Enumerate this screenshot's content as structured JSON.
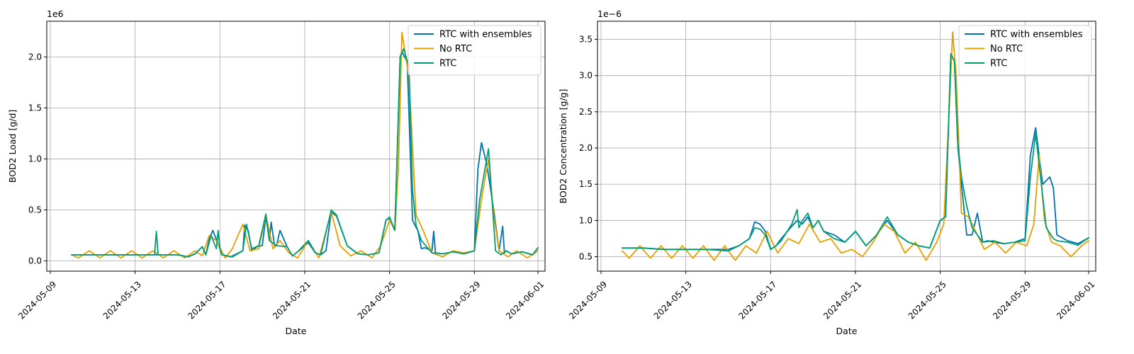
{
  "chart_data": [
    {
      "type": "line",
      "xlabel": "Date",
      "ylabel": "BOD2 Load [g/d]",
      "offset_label": "1e6",
      "scale": 1000000,
      "xlim": [
        "2024-05-08T20:00",
        "2024-06-01T08:00"
      ],
      "xticks": [
        "2024-05-09",
        "2024-05-13",
        "2024-05-17",
        "2024-05-21",
        "2024-05-25",
        "2024-05-29",
        "2024-06-01"
      ],
      "ylim": [
        -0.1,
        2.35
      ],
      "yticks": [
        0.0,
        0.5,
        1.0,
        1.5,
        2.0
      ],
      "ytick_labels": [
        "0.0",
        "0.5",
        "1.0",
        "1.5",
        "2.0"
      ],
      "grid": true,
      "legend_position": "top-right",
      "colors": {
        "RTC with ensembles": "#0072b2",
        "No RTC": "#e69f00",
        "RTC": "#009e73"
      },
      "series": [
        {
          "name": "RTC with ensembles",
          "x": [
            "2024-05-10T00:00",
            "2024-05-11T00:00",
            "2024-05-12T00:00",
            "2024-05-13T00:00",
            "2024-05-13T22:00",
            "2024-05-14T00:00",
            "2024-05-14T02:00",
            "2024-05-15T00:00",
            "2024-05-15T12:00",
            "2024-05-15T20:00",
            "2024-05-16T04:00",
            "2024-05-16T08:00",
            "2024-05-16T12:00",
            "2024-05-16T16:00",
            "2024-05-17T00:00",
            "2024-05-17T02:00",
            "2024-05-17T12:00",
            "2024-05-18T02:00",
            "2024-05-18T04:00",
            "2024-05-18T08:00",
            "2024-05-18T12:00",
            "2024-05-18T18:00",
            "2024-05-19T00:00",
            "2024-05-19T04:00",
            "2024-05-19T08:00",
            "2024-05-19T10:00",
            "2024-05-19T14:00",
            "2024-05-19T16:00",
            "2024-05-19T20:00",
            "2024-05-20T04:00",
            "2024-05-20T10:00",
            "2024-05-20T16:00",
            "2024-05-21T04:00",
            "2024-05-21T12:00",
            "2024-05-21T18:00",
            "2024-05-22T00:00",
            "2024-05-22T06:00",
            "2024-05-22T12:00",
            "2024-05-23T00:00",
            "2024-05-23T12:00",
            "2024-05-24T00:00",
            "2024-05-24T12:00",
            "2024-05-24T20:00",
            "2024-05-25T00:00",
            "2024-05-25T06:00",
            "2024-05-25T12:00",
            "2024-05-25T14:00",
            "2024-05-25T20:00",
            "2024-05-26T02:00",
            "2024-05-26T06:00",
            "2024-05-26T08:00",
            "2024-05-26T12:00",
            "2024-05-26T16:00",
            "2024-05-27T00:00",
            "2024-05-27T02:00",
            "2024-05-27T04:00",
            "2024-05-27T12:00",
            "2024-05-28T00:00",
            "2024-05-28T12:00",
            "2024-05-29T00:00",
            "2024-05-29T04:00",
            "2024-05-29T08:00",
            "2024-05-29T14:00",
            "2024-05-29T22:00",
            "2024-05-30T04:00",
            "2024-05-30T08:00",
            "2024-05-30T10:00",
            "2024-05-30T12:00",
            "2024-05-30T18:00",
            "2024-05-31T06:00",
            "2024-05-31T18:00",
            "2024-06-01T00:00"
          ],
          "values": [
            0.06,
            0.06,
            0.06,
            0.06,
            0.06,
            0.06,
            0.06,
            0.06,
            0.04,
            0.07,
            0.14,
            0.06,
            0.22,
            0.3,
            0.12,
            0.06,
            0.04,
            0.1,
            0.35,
            0.3,
            0.1,
            0.14,
            0.15,
            0.44,
            0.2,
            0.38,
            0.14,
            0.15,
            0.3,
            0.14,
            0.05,
            0.09,
            0.18,
            0.08,
            0.06,
            0.1,
            0.48,
            0.44,
            0.15,
            0.07,
            0.06,
            0.08,
            0.4,
            0.42,
            0.3,
            2.0,
            2.05,
            1.95,
            0.4,
            0.33,
            0.3,
            0.12,
            0.13,
            0.1,
            0.29,
            0.08,
            0.07,
            0.09,
            0.07,
            0.1,
            0.9,
            1.16,
            0.95,
            0.5,
            0.1,
            0.34,
            0.08,
            0.1,
            0.07,
            0.09,
            0.06,
            0.13
          ]
        },
        {
          "name": "No RTC",
          "x": [
            "2024-05-10T00:00",
            "2024-05-10T08:00",
            "2024-05-10T20:00",
            "2024-05-11T08:00",
            "2024-05-11T20:00",
            "2024-05-12T08:00",
            "2024-05-12T20:00",
            "2024-05-13T08:00",
            "2024-05-13T20:00",
            "2024-05-14T08:00",
            "2024-05-14T20:00",
            "2024-05-15T08:00",
            "2024-05-15T20:00",
            "2024-05-16T04:00",
            "2024-05-16T12:00",
            "2024-05-16T20:00",
            "2024-05-17T06:00",
            "2024-05-17T14:00",
            "2024-05-18T02:00",
            "2024-05-18T10:00",
            "2024-05-18T20:00",
            "2024-05-19T04:00",
            "2024-05-19T12:00",
            "2024-05-19T20:00",
            "2024-05-20T06:00",
            "2024-05-20T16:00",
            "2024-05-21T04:00",
            "2024-05-21T16:00",
            "2024-05-22T06:00",
            "2024-05-22T16:00",
            "2024-05-23T04:00",
            "2024-05-23T16:00",
            "2024-05-24T04:00",
            "2024-05-24T14:00",
            "2024-05-25T00:00",
            "2024-05-25T06:00",
            "2024-05-25T10:00",
            "2024-05-25T14:00",
            "2024-05-25T22:00",
            "2024-05-26T06:00",
            "2024-05-26T14:00",
            "2024-05-27T00:00",
            "2024-05-27T12:00",
            "2024-05-28T00:00",
            "2024-05-28T12:00",
            "2024-05-29T00:00",
            "2024-05-29T08:00",
            "2024-05-29T16:00",
            "2024-05-29T22:00",
            "2024-05-30T04:00",
            "2024-05-30T14:00",
            "2024-05-31T00:00",
            "2024-05-31T12:00",
            "2024-06-01T00:00"
          ],
          "values": [
            0.06,
            0.03,
            0.1,
            0.03,
            0.1,
            0.03,
            0.1,
            0.03,
            0.1,
            0.03,
            0.1,
            0.03,
            0.1,
            0.05,
            0.25,
            0.2,
            0.03,
            0.12,
            0.36,
            0.1,
            0.12,
            0.45,
            0.12,
            0.2,
            0.08,
            0.03,
            0.2,
            0.03,
            0.48,
            0.15,
            0.05,
            0.1,
            0.03,
            0.15,
            0.4,
            0.3,
            0.9,
            2.24,
            1.8,
            0.45,
            0.3,
            0.08,
            0.04,
            0.1,
            0.08,
            0.1,
            0.6,
            1.0,
            0.45,
            0.1,
            0.04,
            0.1,
            0.03,
            0.1
          ]
        },
        {
          "name": "RTC",
          "x": [
            "2024-05-10T00:00",
            "2024-05-11T00:00",
            "2024-05-12T00:00",
            "2024-05-13T00:00",
            "2024-05-13T22:00",
            "2024-05-14T00:00",
            "2024-05-14T02:00",
            "2024-05-15T00:00",
            "2024-05-15T12:00",
            "2024-05-15T20:00",
            "2024-05-16T04:00",
            "2024-05-16T08:00",
            "2024-05-16T14:00",
            "2024-05-16T20:00",
            "2024-05-16T22:00",
            "2024-05-17T00:00",
            "2024-05-17T02:00",
            "2024-05-17T14:00",
            "2024-05-18T02:00",
            "2024-05-18T06:00",
            "2024-05-18T12:00",
            "2024-05-18T20:00",
            "2024-05-19T04:00",
            "2024-05-19T08:00",
            "2024-05-19T16:00",
            "2024-05-20T04:00",
            "2024-05-20T10:00",
            "2024-05-20T16:00",
            "2024-05-21T04:00",
            "2024-05-21T12:00",
            "2024-05-21T18:00",
            "2024-05-22T06:00",
            "2024-05-22T12:00",
            "2024-05-23T00:00",
            "2024-05-23T12:00",
            "2024-05-24T00:00",
            "2024-05-24T12:00",
            "2024-05-24T20:00",
            "2024-05-25T00:00",
            "2024-05-25T06:00",
            "2024-05-25T12:00",
            "2024-05-25T16:00",
            "2024-05-25T22:00",
            "2024-05-26T02:00",
            "2024-05-26T06:00",
            "2024-05-26T12:00",
            "2024-05-27T00:00",
            "2024-05-27T12:00",
            "2024-05-28T00:00",
            "2024-05-28T12:00",
            "2024-05-29T00:00",
            "2024-05-29T06:00",
            "2024-05-29T12:00",
            "2024-05-29T16:00",
            "2024-05-29T20:00",
            "2024-05-30T00:00",
            "2024-05-30T06:00",
            "2024-05-30T12:00",
            "2024-05-30T18:00",
            "2024-05-31T06:00",
            "2024-05-31T18:00",
            "2024-06-01T00:00"
          ],
          "values": [
            0.06,
            0.06,
            0.06,
            0.06,
            0.06,
            0.29,
            0.06,
            0.06,
            0.04,
            0.07,
            0.14,
            0.06,
            0.25,
            0.12,
            0.3,
            0.12,
            0.06,
            0.04,
            0.1,
            0.36,
            0.12,
            0.15,
            0.46,
            0.2,
            0.15,
            0.14,
            0.05,
            0.09,
            0.2,
            0.08,
            0.06,
            0.5,
            0.45,
            0.15,
            0.07,
            0.06,
            0.08,
            0.4,
            0.43,
            0.3,
            2.0,
            2.08,
            1.9,
            0.7,
            0.35,
            0.2,
            0.08,
            0.07,
            0.09,
            0.07,
            0.1,
            0.6,
            0.9,
            1.1,
            0.6,
            0.1,
            0.06,
            0.1,
            0.07,
            0.09,
            0.06,
            0.13
          ]
        }
      ]
    },
    {
      "type": "line",
      "xlabel": "Date",
      "ylabel": "BOD2 Concentration [g/g]",
      "offset_label": "1e−6",
      "scale": 1e-06,
      "xlim": [
        "2024-05-08T20:00",
        "2024-06-01T08:00"
      ],
      "xticks": [
        "2024-05-09",
        "2024-05-13",
        "2024-05-17",
        "2024-05-21",
        "2024-05-25",
        "2024-05-29",
        "2024-06-01"
      ],
      "ylim": [
        0.3,
        3.75
      ],
      "yticks": [
        0.5,
        1.0,
        1.5,
        2.0,
        2.5,
        3.0,
        3.5
      ],
      "ytick_labels": [
        "0.5",
        "1.0",
        "1.5",
        "2.0",
        "2.5",
        "3.0",
        "3.5"
      ],
      "grid": true,
      "legend_position": "top-right",
      "colors": {
        "RTC with ensembles": "#0072b2",
        "No RTC": "#e69f00",
        "RTC": "#009e73"
      },
      "series": [
        {
          "name": "RTC with ensembles",
          "x": [
            "2024-05-10T00:00",
            "2024-05-11T00:00",
            "2024-05-12T00:00",
            "2024-05-13T00:00",
            "2024-05-14T00:00",
            "2024-05-15T00:00",
            "2024-05-15T12:00",
            "2024-05-16T00:00",
            "2024-05-16T06:00",
            "2024-05-16T12:00",
            "2024-05-16T18:00",
            "2024-05-17T00:00",
            "2024-05-17T06:00",
            "2024-05-17T12:00",
            "2024-05-18T00:00",
            "2024-05-18T06:00",
            "2024-05-18T12:00",
            "2024-05-18T18:00",
            "2024-05-19T00:00",
            "2024-05-19T06:00",
            "2024-05-19T12:00",
            "2024-05-20T00:00",
            "2024-05-20T12:00",
            "2024-05-21T00:00",
            "2024-05-21T12:00",
            "2024-05-22T00:00",
            "2024-05-22T12:00",
            "2024-05-23T00:00",
            "2024-05-23T12:00",
            "2024-05-24T00:00",
            "2024-05-24T12:00",
            "2024-05-25T00:00",
            "2024-05-25T06:00",
            "2024-05-25T12:00",
            "2024-05-25T16:00",
            "2024-05-25T20:00",
            "2024-05-26T00:00",
            "2024-05-26T06:00",
            "2024-05-26T12:00",
            "2024-05-26T18:00",
            "2024-05-27T00:00",
            "2024-05-27T06:00",
            "2024-05-27T12:00",
            "2024-05-28T00:00",
            "2024-05-28T12:00",
            "2024-05-29T00:00",
            "2024-05-29T06:00",
            "2024-05-29T12:00",
            "2024-05-29T20:00",
            "2024-05-30T04:00",
            "2024-05-30T08:00",
            "2024-05-30T12:00",
            "2024-05-31T00:00",
            "2024-05-31T12:00",
            "2024-06-01T00:00"
          ],
          "values": [
            0.62,
            0.62,
            0.6,
            0.6,
            0.6,
            0.6,
            0.65,
            0.75,
            0.98,
            0.95,
            0.85,
            0.6,
            0.65,
            0.75,
            0.92,
            1.0,
            0.95,
            1.05,
            0.9,
            1.0,
            0.85,
            0.8,
            0.7,
            0.85,
            0.65,
            0.8,
            1.0,
            0.8,
            0.7,
            0.65,
            0.62,
            1.0,
            1.05,
            3.3,
            3.2,
            2.0,
            1.5,
            0.8,
            0.8,
            1.1,
            0.7,
            0.72,
            0.7,
            0.68,
            0.7,
            0.75,
            1.9,
            2.28,
            1.5,
            1.6,
            1.45,
            0.8,
            0.72,
            0.68,
            0.76
          ]
        },
        {
          "name": "No RTC",
          "x": [
            "2024-05-10T00:00",
            "2024-05-10T08:00",
            "2024-05-10T20:00",
            "2024-05-11T08:00",
            "2024-05-11T20:00",
            "2024-05-12T08:00",
            "2024-05-12T20:00",
            "2024-05-13T08:00",
            "2024-05-13T20:00",
            "2024-05-14T08:00",
            "2024-05-14T20:00",
            "2024-05-15T08:00",
            "2024-05-15T20:00",
            "2024-05-16T08:00",
            "2024-05-16T20:00",
            "2024-05-17T08:00",
            "2024-05-17T20:00",
            "2024-05-18T08:00",
            "2024-05-18T20:00",
            "2024-05-19T08:00",
            "2024-05-19T20:00",
            "2024-05-20T08:00",
            "2024-05-20T20:00",
            "2024-05-21T08:00",
            "2024-05-21T20:00",
            "2024-05-22T08:00",
            "2024-05-22T20:00",
            "2024-05-23T08:00",
            "2024-05-23T20:00",
            "2024-05-24T08:00",
            "2024-05-24T20:00",
            "2024-05-25T04:00",
            "2024-05-25T10:00",
            "2024-05-25T14:00",
            "2024-05-25T18:00",
            "2024-05-26T00:00",
            "2024-05-26T08:00",
            "2024-05-26T16:00",
            "2024-05-27T02:00",
            "2024-05-27T14:00",
            "2024-05-28T02:00",
            "2024-05-28T14:00",
            "2024-05-29T02:00",
            "2024-05-29T10:00",
            "2024-05-29T16:00",
            "2024-05-29T22:00",
            "2024-05-30T06:00",
            "2024-05-30T16:00",
            "2024-05-31T04:00",
            "2024-05-31T16:00",
            "2024-06-01T00:00"
          ],
          "values": [
            0.58,
            0.48,
            0.65,
            0.48,
            0.65,
            0.48,
            0.65,
            0.48,
            0.65,
            0.45,
            0.65,
            0.45,
            0.65,
            0.55,
            0.85,
            0.55,
            0.75,
            0.68,
            0.95,
            0.7,
            0.75,
            0.55,
            0.6,
            0.5,
            0.7,
            0.95,
            0.85,
            0.55,
            0.7,
            0.45,
            0.7,
            0.95,
            2.5,
            3.6,
            3.0,
            1.1,
            1.05,
            0.85,
            0.6,
            0.7,
            0.55,
            0.7,
            0.65,
            0.95,
            1.9,
            1.0,
            0.7,
            0.65,
            0.5,
            0.65,
            0.72
          ]
        },
        {
          "name": "RTC",
          "x": [
            "2024-05-10T00:00",
            "2024-05-11T00:00",
            "2024-05-12T00:00",
            "2024-05-13T00:00",
            "2024-05-14T00:00",
            "2024-05-15T00:00",
            "2024-05-15T12:00",
            "2024-05-16T00:00",
            "2024-05-16T06:00",
            "2024-05-16T12:00",
            "2024-05-16T18:00",
            "2024-05-17T00:00",
            "2024-05-17T06:00",
            "2024-05-17T12:00",
            "2024-05-18T00:00",
            "2024-05-18T06:00",
            "2024-05-18T08:00",
            "2024-05-18T12:00",
            "2024-05-18T18:00",
            "2024-05-19T00:00",
            "2024-05-19T06:00",
            "2024-05-19T12:00",
            "2024-05-20T00:00",
            "2024-05-20T12:00",
            "2024-05-21T00:00",
            "2024-05-21T12:00",
            "2024-05-22T00:00",
            "2024-05-22T12:00",
            "2024-05-23T00:00",
            "2024-05-23T12:00",
            "2024-05-24T00:00",
            "2024-05-24T12:00",
            "2024-05-25T00:00",
            "2024-05-25T06:00",
            "2024-05-25T12:00",
            "2024-05-25T16:00",
            "2024-05-25T20:00",
            "2024-05-26T00:00",
            "2024-05-26T06:00",
            "2024-05-26T12:00",
            "2024-05-27T00:00",
            "2024-05-27T12:00",
            "2024-05-28T00:00",
            "2024-05-28T12:00",
            "2024-05-29T00:00",
            "2024-05-29T06:00",
            "2024-05-29T12:00",
            "2024-05-29T18:00",
            "2024-05-30T00:00",
            "2024-05-30T08:00",
            "2024-05-30T12:00",
            "2024-05-31T00:00",
            "2024-05-31T12:00",
            "2024-06-01T00:00"
          ],
          "values": [
            0.62,
            0.62,
            0.6,
            0.6,
            0.6,
            0.58,
            0.65,
            0.75,
            0.9,
            0.88,
            0.8,
            0.6,
            0.65,
            0.72,
            0.95,
            1.15,
            0.9,
            1.0,
            1.1,
            0.9,
            1.0,
            0.85,
            0.75,
            0.7,
            0.85,
            0.65,
            0.8,
            1.05,
            0.8,
            0.7,
            0.65,
            0.62,
            1.0,
            1.05,
            3.3,
            3.2,
            2.05,
            1.6,
            1.2,
            0.9,
            0.7,
            0.72,
            0.68,
            0.7,
            0.72,
            1.6,
            2.2,
            1.55,
            0.9,
            0.75,
            0.72,
            0.7,
            0.66,
            0.76
          ]
        }
      ]
    }
  ]
}
